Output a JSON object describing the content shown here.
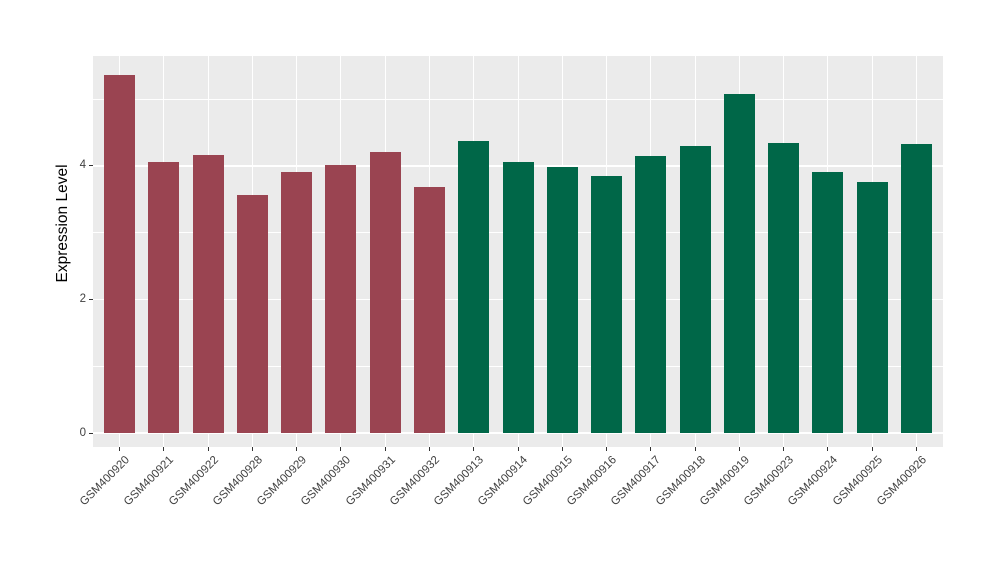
{
  "chart_data": {
    "type": "bar",
    "title": "",
    "xlabel": "",
    "ylabel": "Expression Level",
    "categories": [
      "GSM400920",
      "GSM400921",
      "GSM400922",
      "GSM400928",
      "GSM400929",
      "GSM400930",
      "GSM400931",
      "GSM400932",
      "GSM400913",
      "GSM400914",
      "GSM400915",
      "GSM400916",
      "GSM400917",
      "GSM400918",
      "GSM400919",
      "GSM400923",
      "GSM400924",
      "GSM400925",
      "GSM400926"
    ],
    "values": [
      5.36,
      4.05,
      4.16,
      3.56,
      3.91,
      4.01,
      4.2,
      3.69,
      4.37,
      4.06,
      3.98,
      3.84,
      4.15,
      4.29,
      5.08,
      4.34,
      3.91,
      3.76,
      4.32
    ],
    "groups": [
      "A",
      "A",
      "A",
      "A",
      "A",
      "A",
      "A",
      "A",
      "B",
      "B",
      "B",
      "B",
      "B",
      "B",
      "B",
      "B",
      "B",
      "B",
      "B"
    ],
    "group_colors": {
      "A": "#9A4451",
      "B": "#006748"
    },
    "yticks_major": [
      0,
      2,
      4
    ],
    "yticks_minor": [
      1,
      3,
      5
    ],
    "ylim": [
      0,
      5.64
    ],
    "legend": "none",
    "grid": "on",
    "panel_bg": "#EBEBEB",
    "grid_color": "#FFFFFF",
    "tick_label_color": "#404040"
  }
}
